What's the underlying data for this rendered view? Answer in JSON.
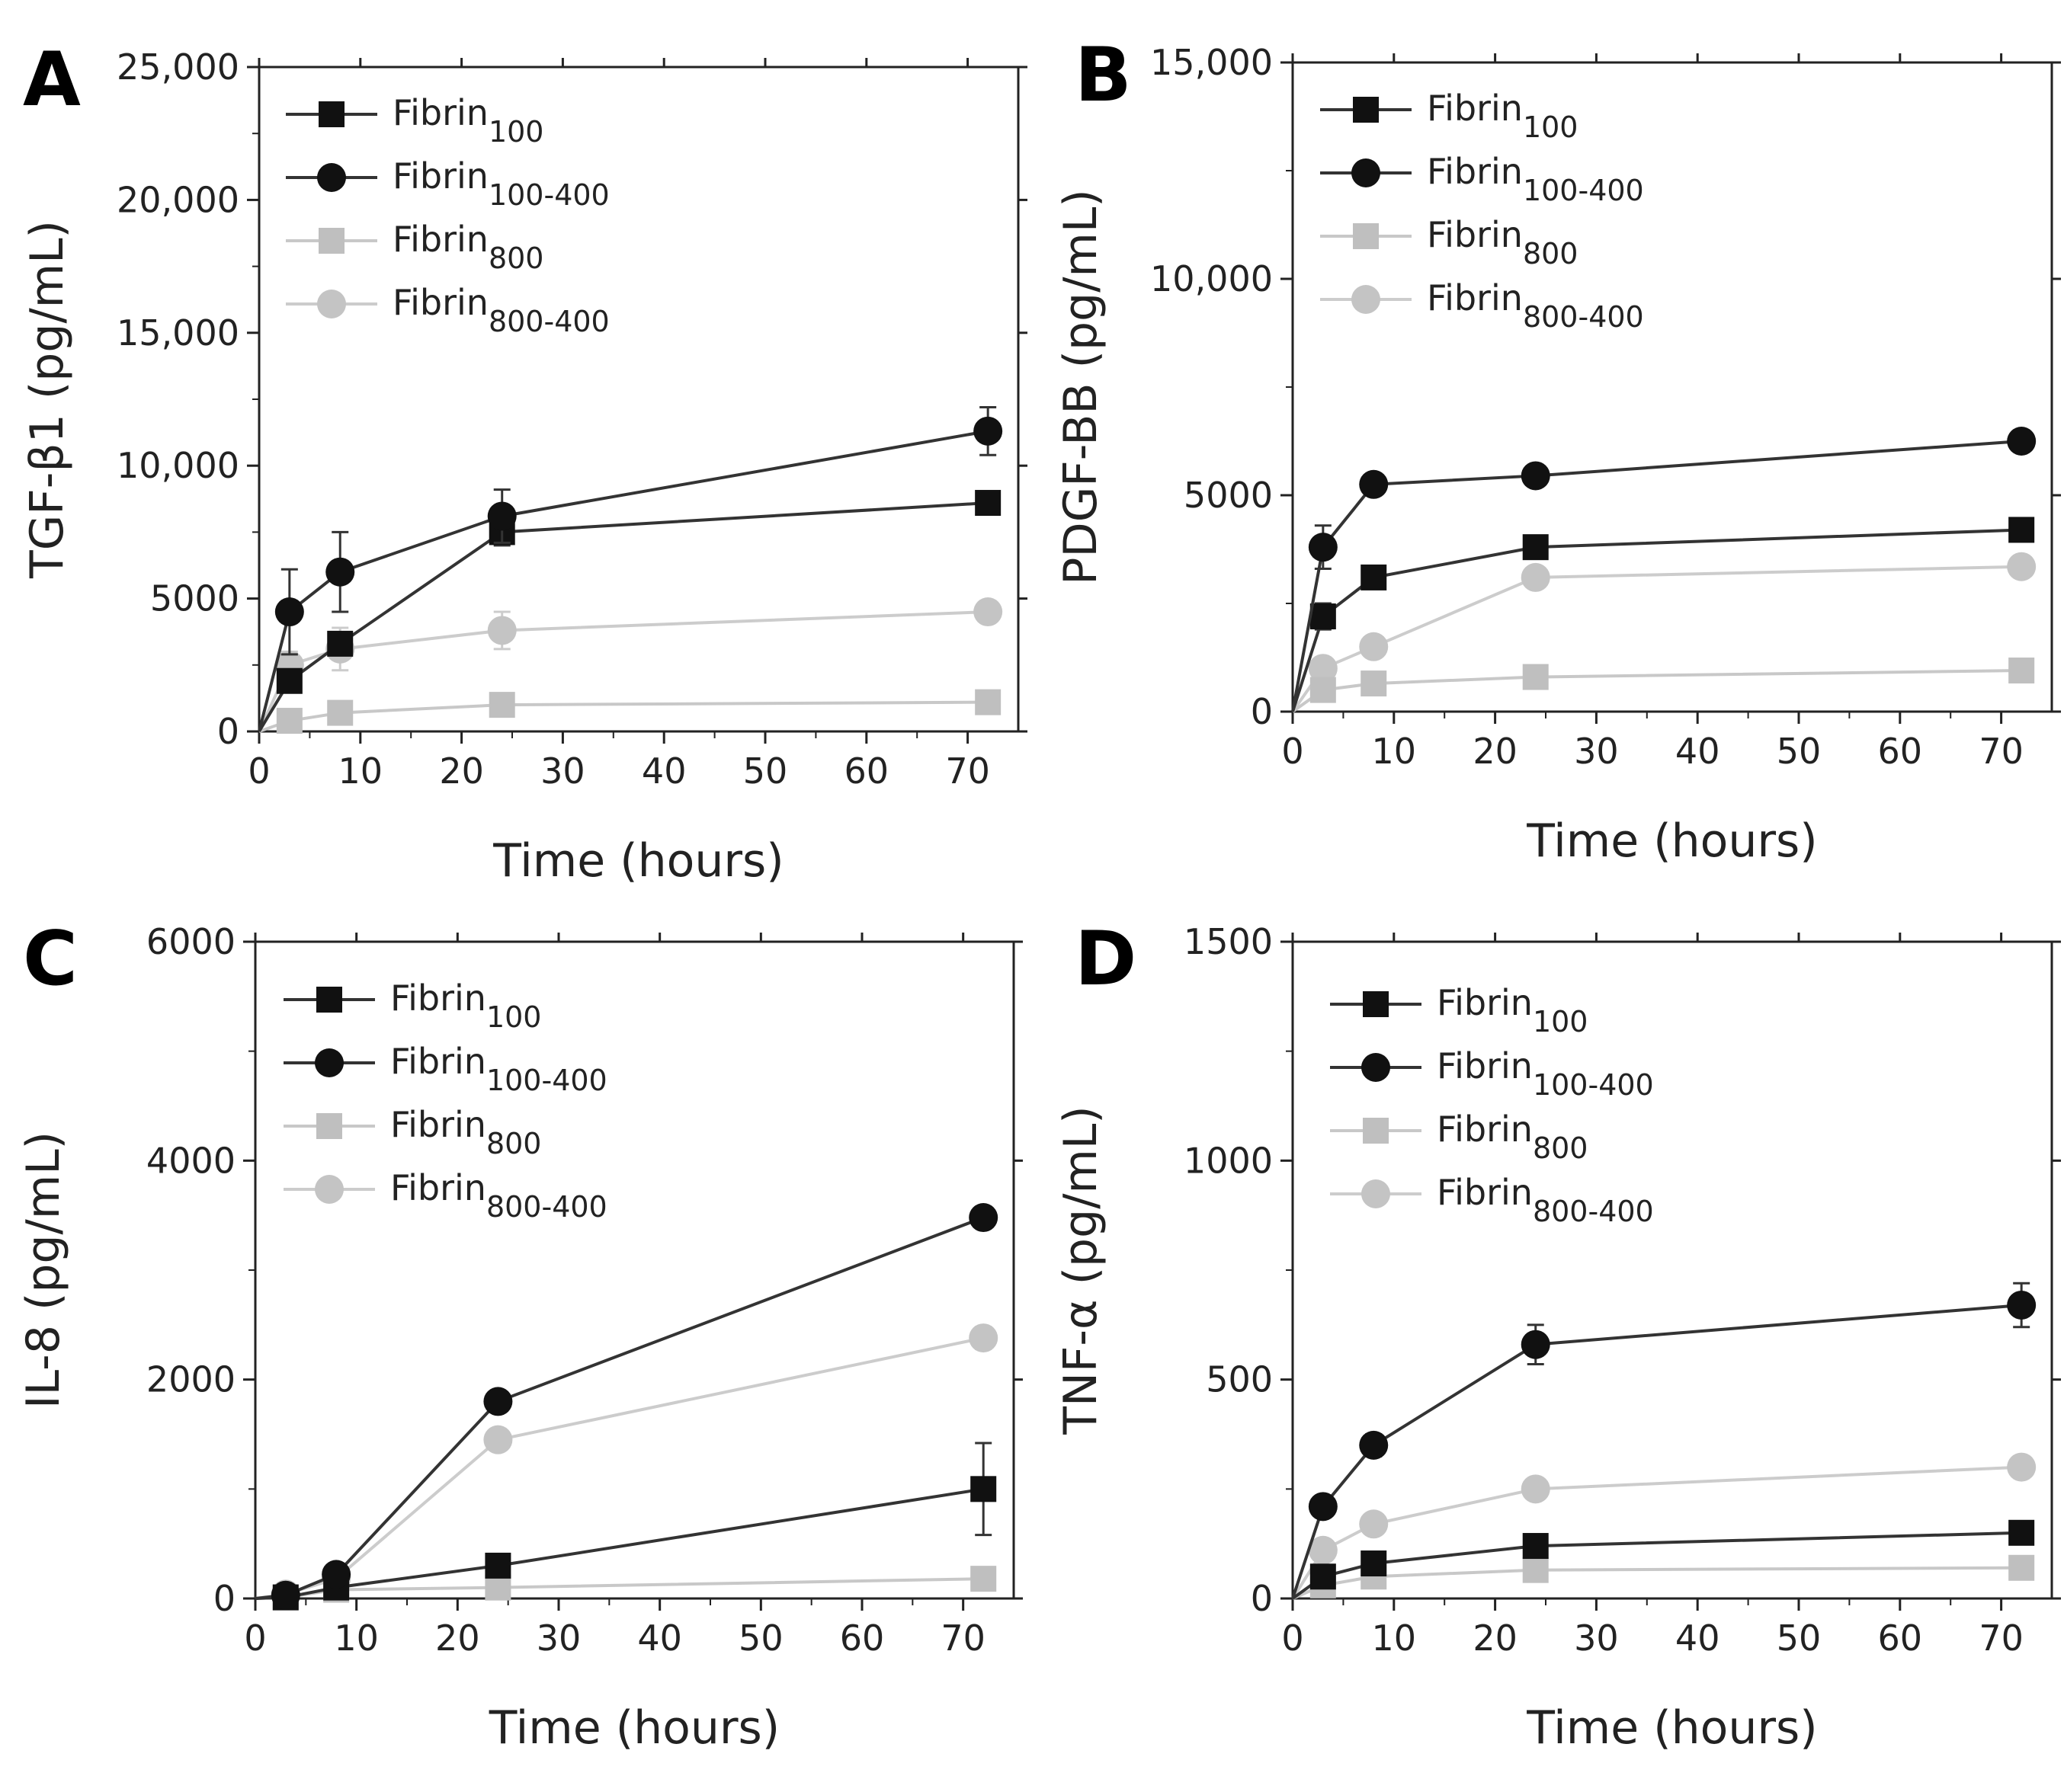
{
  "figure": {
    "panel_labels": [
      "A",
      "B",
      "C",
      "D"
    ],
    "series_styles": [
      {
        "marker": "square",
        "color": "#111111",
        "line": "#333333"
      },
      {
        "marker": "circle",
        "color": "#111111",
        "line": "#333333"
      },
      {
        "marker": "square",
        "color": "#bfbfbf",
        "line": "#c8c8c8"
      },
      {
        "marker": "circle",
        "color": "#c4c4c4",
        "line": "#cccccc"
      }
    ]
  },
  "chart_data": [
    {
      "panel": "A",
      "type": "line",
      "xlabel": "Time (hours)",
      "ylabel": "TGF-β1 (pg/mL)",
      "xlim": [
        0,
        75
      ],
      "ylim": [
        0,
        25000
      ],
      "xticks": [
        0,
        10,
        20,
        30,
        40,
        50,
        60,
        70
      ],
      "xtick_labels": [
        "0",
        "10",
        "20",
        "30",
        "40",
        "50",
        "60",
        "70"
      ],
      "yticks": [
        0,
        5000,
        10000,
        15000,
        20000,
        25000
      ],
      "ytick_labels": [
        "0",
        "5000",
        "10,000",
        "15,000",
        "20,000",
        "25,000"
      ],
      "x": [
        0,
        3,
        8,
        24,
        72
      ],
      "series": [
        {
          "name": "Fibrin",
          "sub": "100",
          "values": [
            0,
            1900,
            3300,
            7500,
            8600
          ],
          "errors": [
            0,
            300,
            400,
            500,
            250
          ]
        },
        {
          "name": "Fibrin",
          "sub": "100-400",
          "values": [
            0,
            4500,
            6000,
            8100,
            11300
          ],
          "errors": [
            0,
            1600,
            1500,
            1000,
            900
          ]
        },
        {
          "name": "Fibrin",
          "sub": "800",
          "values": [
            0,
            400,
            700,
            1000,
            1100
          ],
          "errors": [
            0,
            100,
            100,
            100,
            100
          ]
        },
        {
          "name": "Fibrin",
          "sub": "800-400",
          "values": [
            0,
            2500,
            3100,
            3800,
            4500
          ],
          "errors": [
            0,
            500,
            800,
            700,
            400
          ]
        }
      ]
    },
    {
      "panel": "B",
      "type": "line",
      "xlabel": "Time (hours)",
      "ylabel": "PDGF-BB (pg/mL)",
      "xlim": [
        0,
        75
      ],
      "ylim": [
        0,
        15000
      ],
      "xticks": [
        0,
        10,
        20,
        30,
        40,
        50,
        60,
        70
      ],
      "xtick_labels": [
        "0",
        "10",
        "20",
        "30",
        "40",
        "50",
        "60",
        "70"
      ],
      "yticks": [
        0,
        5000,
        10000,
        15000
      ],
      "ytick_labels": [
        "0",
        "5000",
        "10,000",
        "15,000"
      ],
      "x": [
        0,
        3,
        8,
        24,
        72
      ],
      "series": [
        {
          "name": "Fibrin",
          "sub": "100",
          "values": [
            0,
            2200,
            3100,
            3800,
            4200
          ],
          "errors": [
            0,
            300,
            200,
            150,
            150
          ]
        },
        {
          "name": "Fibrin",
          "sub": "100-400",
          "values": [
            0,
            3800,
            5250,
            5450,
            6250
          ],
          "errors": [
            0,
            500,
            200,
            150,
            150
          ]
        },
        {
          "name": "Fibrin",
          "sub": "800",
          "values": [
            0,
            500,
            650,
            800,
            950
          ],
          "errors": [
            0,
            100,
            100,
            80,
            80
          ]
        },
        {
          "name": "Fibrin",
          "sub": "800-400",
          "values": [
            0,
            1000,
            1500,
            3100,
            3350
          ],
          "errors": [
            0,
            200,
            150,
            150,
            150
          ]
        }
      ]
    },
    {
      "panel": "C",
      "type": "line",
      "xlabel": "Time (hours)",
      "ylabel": "IL-8 (pg/mL)",
      "xlim": [
        0,
        75
      ],
      "ylim": [
        0,
        6000
      ],
      "xticks": [
        0,
        10,
        20,
        30,
        40,
        50,
        60,
        70
      ],
      "xtick_labels": [
        "0",
        "10",
        "20",
        "30",
        "40",
        "50",
        "60",
        "70"
      ],
      "yticks": [
        0,
        2000,
        4000,
        6000
      ],
      "ytick_labels": [
        "0",
        "2000",
        "4000",
        "6000"
      ],
      "x": [
        0,
        3,
        8,
        24,
        72
      ],
      "series": [
        {
          "name": "Fibrin",
          "sub": "100",
          "values": [
            0,
            10,
            100,
            300,
            1000
          ],
          "errors": [
            0,
            10,
            30,
            50,
            420
          ]
        },
        {
          "name": "Fibrin",
          "sub": "100-400",
          "values": [
            0,
            30,
            220,
            1800,
            3480
          ],
          "errors": [
            0,
            20,
            50,
            60,
            60
          ]
        },
        {
          "name": "Fibrin",
          "sub": "800",
          "values": [
            0,
            10,
            80,
            100,
            180
          ],
          "errors": [
            0,
            10,
            20,
            30,
            40
          ]
        },
        {
          "name": "Fibrin",
          "sub": "800-400",
          "values": [
            0,
            40,
            180,
            1450,
            2380
          ],
          "errors": [
            0,
            20,
            40,
            80,
            100
          ]
        }
      ]
    },
    {
      "panel": "D",
      "type": "line",
      "xlabel": "Time (hours)",
      "ylabel": "TNF-α (pg/mL)",
      "xlim": [
        0,
        75
      ],
      "ylim": [
        0,
        1500
      ],
      "xticks": [
        0,
        10,
        20,
        30,
        40,
        50,
        60,
        70
      ],
      "xtick_labels": [
        "0",
        "10",
        "20",
        "30",
        "40",
        "50",
        "60",
        "70"
      ],
      "yticks": [
        0,
        500,
        1000,
        1500
      ],
      "ytick_labels": [
        "0",
        "500",
        "1000",
        "1500"
      ],
      "x": [
        0,
        3,
        8,
        24,
        72
      ],
      "series": [
        {
          "name": "Fibrin",
          "sub": "100",
          "values": [
            0,
            50,
            80,
            120,
            150
          ],
          "errors": [
            0,
            10,
            15,
            20,
            20
          ]
        },
        {
          "name": "Fibrin",
          "sub": "100-400",
          "values": [
            0,
            210,
            350,
            580,
            670
          ],
          "errors": [
            0,
            20,
            25,
            45,
            50
          ]
        },
        {
          "name": "Fibrin",
          "sub": "800",
          "values": [
            0,
            30,
            50,
            65,
            70
          ],
          "errors": [
            0,
            10,
            10,
            10,
            10
          ]
        },
        {
          "name": "Fibrin",
          "sub": "800-400",
          "values": [
            0,
            110,
            170,
            250,
            300
          ],
          "errors": [
            0,
            15,
            15,
            20,
            20
          ]
        }
      ]
    }
  ]
}
